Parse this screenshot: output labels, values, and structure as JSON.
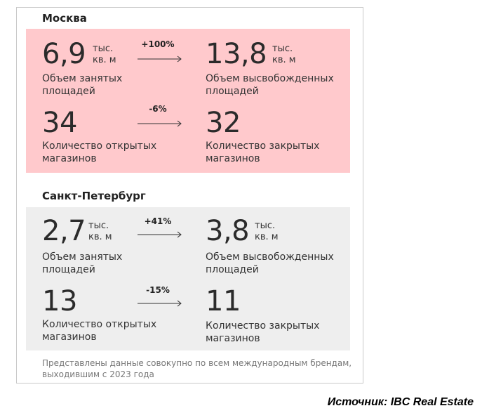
{
  "moscow": {
    "title": "Москва",
    "occupied": {
      "value": "6,9",
      "unit_line1": "тыс.",
      "unit_line2": "кв. м",
      "desc_line1": "Объем занятых",
      "desc_line2": "площадей"
    },
    "released": {
      "value": "13,8",
      "unit_line1": "тыс.",
      "unit_line2": "кв. м",
      "desc_line1": "Объем высвобожденных",
      "desc_line2": "площадей"
    },
    "change_area": "+100%",
    "opened": {
      "value": "34",
      "desc_line1": "Количество открытых",
      "desc_line2": "магазинов"
    },
    "closed": {
      "value": "32",
      "desc_line1": "Количество закрытых",
      "desc_line2": "магазинов"
    },
    "change_stores": "-6%"
  },
  "spb": {
    "title": "Санкт-Петербург",
    "occupied": {
      "value": "2,7",
      "unit_line1": "тыс.",
      "unit_line2": "кв. м",
      "desc_line1": "Объем занятых",
      "desc_line2": "площадей"
    },
    "released": {
      "value": "3,8",
      "unit_line1": "тыс.",
      "unit_line2": "кв. м",
      "desc_line1": "Объем высвобожденных",
      "desc_line2": "площадей"
    },
    "change_area": "+41%",
    "opened": {
      "value": "13",
      "desc_line1": "Количество открытых",
      "desc_line2": "магазинов"
    },
    "closed": {
      "value": "11",
      "desc_line1": "Количество закрытых",
      "desc_line2": "магазинов"
    },
    "change_stores": "-15%"
  },
  "note_line1": "Представлены данные совокупно по всем международным брендам,",
  "note_line2": "выходившим с 2023 года",
  "source": "Источник: IBC Real Estate",
  "colors": {
    "moscow_panel": "#ffc9cc",
    "spb_panel": "#eeeeee"
  }
}
